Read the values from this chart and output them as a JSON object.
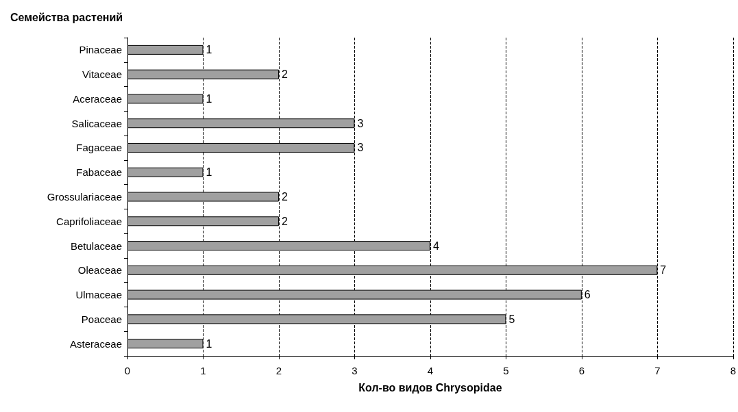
{
  "chart_data": {
    "type": "bar",
    "orientation": "horizontal",
    "ylabel": "Семейства растений",
    "xlabel": "Кол-во видов Chrysopidae",
    "categories": [
      "Pinaceae",
      "Vitaceae",
      "Aceraceae",
      "Salicaceae",
      "Fagaceae",
      "Fabaceae",
      "Grossulariaceae",
      "Caprifoliaceae",
      "Betulaceae",
      "Oleaceae",
      "Ulmaceae",
      "Poaceae",
      "Asteraceae"
    ],
    "values": [
      1,
      2,
      1,
      3,
      3,
      1,
      2,
      2,
      4,
      7,
      6,
      5,
      1
    ],
    "color": "#a0a0a0",
    "xlim": [
      0,
      8
    ],
    "xticks": [
      0,
      1,
      2,
      3,
      4,
      5,
      6,
      7,
      8
    ],
    "grid": "x",
    "data_labels": true
  }
}
